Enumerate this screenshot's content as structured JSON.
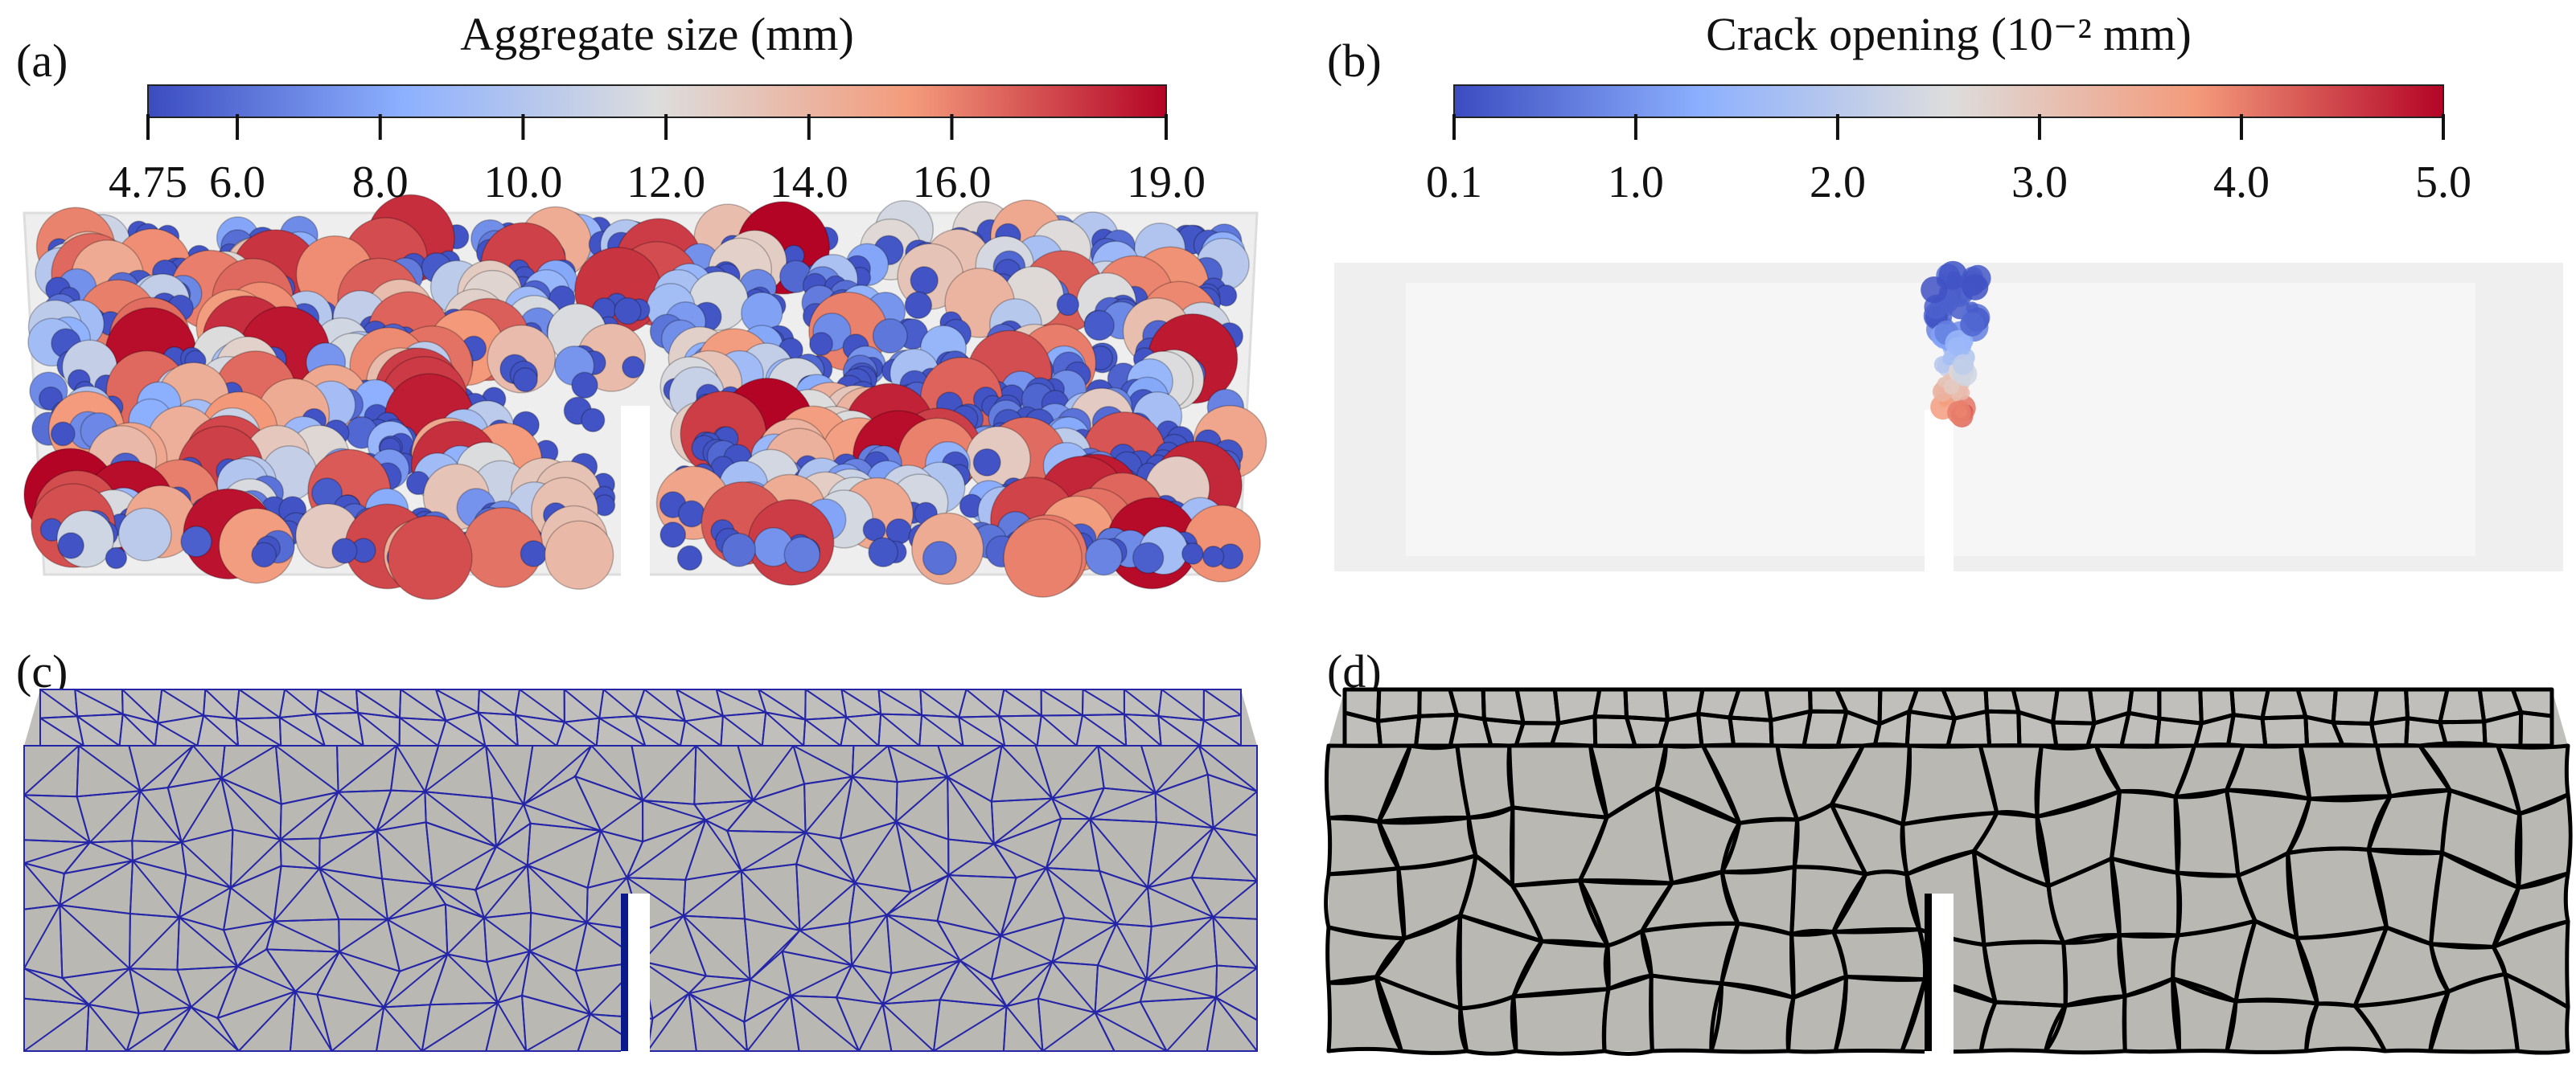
{
  "panels": [
    {
      "label": "(a)",
      "colorbar": {
        "title": "Aggregate size (mm)",
        "ticks": [
          4.75,
          {
            "value": 6.0,
            "label": "6.0"
          },
          {
            "value": 8.0,
            "label": "8.0"
          },
          {
            "value": 10.0,
            "label": "10.0"
          },
          {
            "value": 12.0,
            "label": "12.0"
          },
          {
            "value": 14.0,
            "label": "14.0"
          },
          {
            "value": 16.0,
            "label": "16.0"
          },
          {
            "value": 19.0,
            "label": "19.0"
          }
        ]
      }
    },
    {
      "label": "(b)",
      "colorbar": {
        "title": "Crack opening (10⁻² mm)",
        "ticks": [
          0.1,
          {
            "value": 1.0,
            "label": "1.0"
          },
          {
            "value": 2.0,
            "label": "2.0"
          },
          {
            "value": 3.0,
            "label": "3.0"
          },
          {
            "value": 4.0,
            "label": "4.0"
          },
          {
            "value": 5.0,
            "label": "5.0"
          }
        ]
      }
    },
    {
      "label": "(c)"
    },
    {
      "label": "(d)"
    }
  ]
}
